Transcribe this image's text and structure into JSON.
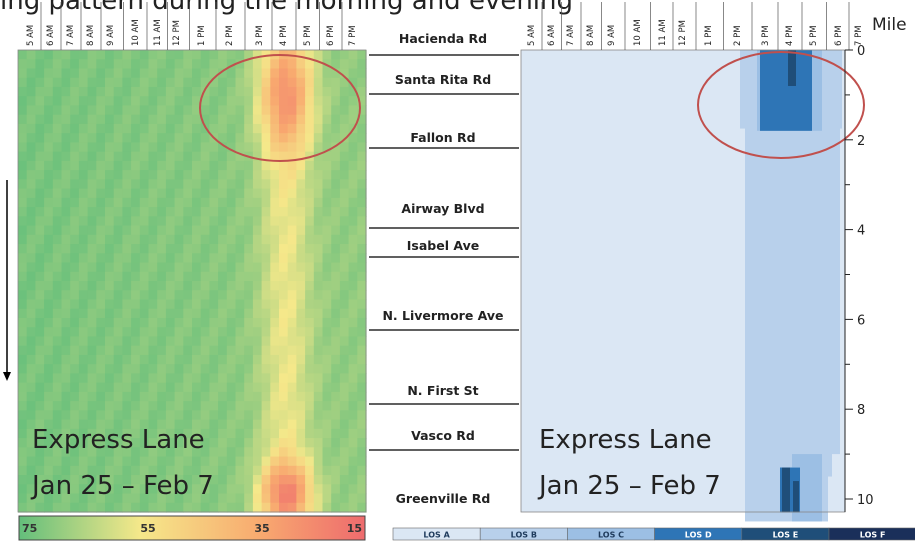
{
  "header_fragment": "ing pattern during the morning and evening",
  "chart_data": [
    {
      "type": "heatmap",
      "name_label": "",
      "x_ticks": [
        "5 AM",
        "6 AM",
        "7 AM",
        "8 AM",
        "9 AM",
        "10 AM",
        "11 AM",
        "12 PM",
        "1 PM",
        "2 PM",
        "3 PM",
        "4 PM",
        "5 PM",
        "6 PM",
        "7 PM"
      ],
      "annotation_line1": "Express Lane",
      "annotation_line2": "Jan 25 – Feb 7",
      "colorbar_ticks": [
        "75",
        "55",
        "35",
        "15"
      ],
      "colorbar_colors": [
        "#63be7b",
        "#f5e88a",
        "#f8a96f",
        "#ee6b6e"
      ],
      "value_range": [
        75,
        15
      ],
      "highlight": "circle around 3 PM–6 PM near Mile 0–1.5"
    },
    {
      "type": "heatmap",
      "x_ticks": [
        "5 AM",
        "6 AM",
        "7 AM",
        "8 AM",
        "9 AM",
        "10 AM",
        "11 AM",
        "12 PM",
        "1 PM",
        "2 PM",
        "3 PM",
        "4 PM",
        "5 PM",
        "6 PM",
        "7 PM"
      ],
      "annotation_line1": "Express Lane",
      "annotation_line2": "Jan 25 – Feb 7",
      "legend": [
        "LOS A",
        "LOS B",
        "LOS C",
        "LOS D",
        "LOS E",
        "LOS F"
      ],
      "legend_colors": [
        "#dbe7f4",
        "#b8d0eb",
        "#9cbfe4",
        "#2e75b6",
        "#1f4e79",
        "#1a2f5a"
      ],
      "y_label": "Mile",
      "y_ticks": [
        0,
        2,
        4,
        6,
        8,
        10
      ],
      "ylim": [
        0,
        10.5
      ]
    }
  ],
  "segments": {
    "labels": [
      "Hacienda Rd",
      "Santa Rita Rd",
      "Fallon Rd",
      "Airway Blvd",
      "Isabel Ave",
      "N. Livermore Ave",
      "N. First St",
      "Vasco Rd",
      "Greenville Rd"
    ]
  }
}
